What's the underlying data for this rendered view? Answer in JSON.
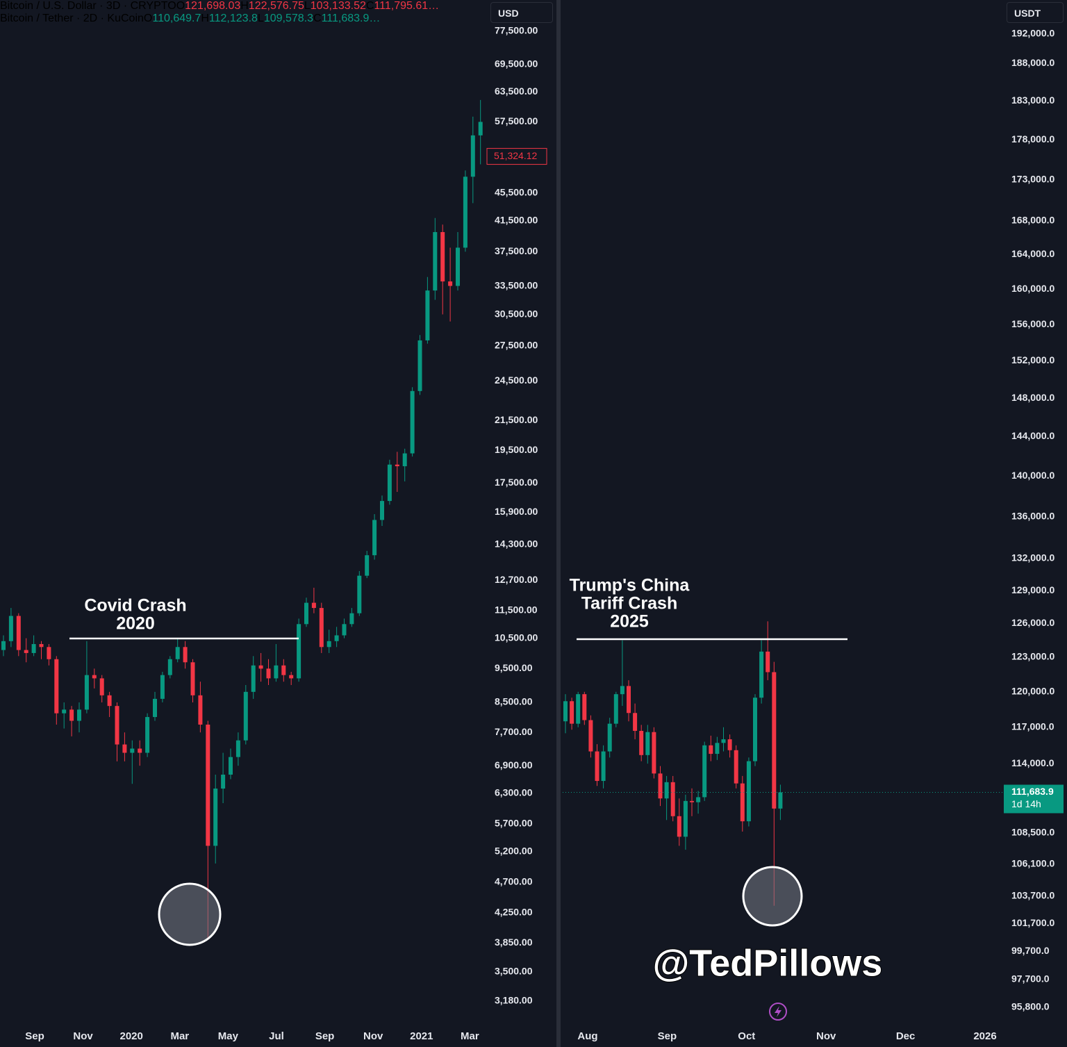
{
  "watermark": "@TedPillows",
  "chart_data": [
    {
      "type": "candlestick",
      "log_scale": true,
      "up_color": "#089981",
      "down_color": "#f23645",
      "header": {
        "symbol": "Bitcoin / U.S. Dollar · 3D · CRYPTO",
        "currency": "USD",
        "value_color": "#f23645",
        "ohlc": [
          {
            "key": "O",
            "text": "121,698.03"
          },
          {
            "key": "H",
            "text": "122,576.75"
          },
          {
            "key": "L",
            "text": "103,133.52"
          },
          {
            "key": "C",
            "text": "111,795.61…"
          }
        ]
      },
      "ylim": [
        2940,
        80200
      ],
      "yticks": [
        {
          "value": 77500,
          "label": "77,500.00"
        },
        {
          "value": 69500,
          "label": "69,500.00"
        },
        {
          "value": 63500,
          "label": "63,500.00"
        },
        {
          "value": 57500,
          "label": "57,500.00"
        },
        {
          "value": 45500,
          "label": "45,500.00"
        },
        {
          "value": 41500,
          "label": "41,500.00"
        },
        {
          "value": 37500,
          "label": "37,500.00"
        },
        {
          "value": 33500,
          "label": "33,500.00"
        },
        {
          "value": 30500,
          "label": "30,500.00"
        },
        {
          "value": 27500,
          "label": "27,500.00"
        },
        {
          "value": 24500,
          "label": "24,500.00"
        },
        {
          "value": 21500,
          "label": "21,500.00"
        },
        {
          "value": 19500,
          "label": "19,500.00"
        },
        {
          "value": 17500,
          "label": "17,500.00"
        },
        {
          "value": 15900,
          "label": "15,900.00"
        },
        {
          "value": 14300,
          "label": "14,300.00"
        },
        {
          "value": 12700,
          "label": "12,700.00"
        },
        {
          "value": 11500,
          "label": "11,500.00"
        },
        {
          "value": 10500,
          "label": "10,500.00"
        },
        {
          "value": 9500,
          "label": "9,500.00"
        },
        {
          "value": 8500,
          "label": "8,500.00"
        },
        {
          "value": 7700,
          "label": "7,700.00"
        },
        {
          "value": 6900,
          "label": "6,900.00"
        },
        {
          "value": 6300,
          "label": "6,300.00"
        },
        {
          "value": 5700,
          "label": "5,700.00"
        },
        {
          "value": 5200,
          "label": "5,200.00"
        },
        {
          "value": 4700,
          "label": "4,700.00"
        },
        {
          "value": 4250,
          "label": "4,250.00"
        },
        {
          "value": 3850,
          "label": "3,850.00"
        },
        {
          "value": 3500,
          "label": "3,500.00"
        },
        {
          "value": 3180,
          "label": "3,180.00"
        }
      ],
      "xticks": [
        "Sep",
        "Nov",
        "2020",
        "Mar",
        "May",
        "Jul",
        "Sep",
        "Nov",
        "2021",
        "Mar"
      ],
      "last_price": {
        "value": 51324.12,
        "label": "51,324.12"
      },
      "annotation": {
        "lines": [
          "Covid Crash",
          "2020"
        ],
        "level": 10490
      },
      "ohlc": [
        [
          10100,
          10600,
          9900,
          10400
        ],
        [
          10400,
          11600,
          10200,
          11300
        ],
        [
          11300,
          11400,
          9900,
          10100
        ],
        [
          10100,
          10500,
          9700,
          10000
        ],
        [
          10000,
          10600,
          9900,
          10300
        ],
        [
          10300,
          10400,
          9800,
          10200
        ],
        [
          10200,
          10300,
          9600,
          9800
        ],
        [
          9800,
          9900,
          7900,
          8200
        ],
        [
          8200,
          8500,
          7800,
          8300
        ],
        [
          8300,
          8400,
          7600,
          8000
        ],
        [
          8000,
          8500,
          7700,
          8300
        ],
        [
          8300,
          10400,
          8200,
          9300
        ],
        [
          9300,
          9500,
          8900,
          9200
        ],
        [
          9200,
          9300,
          8500,
          8700
        ],
        [
          8700,
          8800,
          8100,
          8400
        ],
        [
          8400,
          8500,
          7000,
          7400
        ],
        [
          7400,
          7700,
          7000,
          7200
        ],
        [
          7200,
          7500,
          6500,
          7300
        ],
        [
          7300,
          7500,
          6900,
          7200
        ],
        [
          7200,
          8200,
          7100,
          8100
        ],
        [
          8100,
          8800,
          8000,
          8600
        ],
        [
          8600,
          9400,
          8500,
          9300
        ],
        [
          9300,
          9900,
          9200,
          9800
        ],
        [
          9800,
          10500,
          9700,
          10200
        ],
        [
          10200,
          10400,
          9500,
          9700
        ],
        [
          9700,
          9800,
          8500,
          8700
        ],
        [
          8700,
          9100,
          7700,
          7900
        ],
        [
          7900,
          8000,
          3900,
          5300
        ],
        [
          5300,
          6700,
          5000,
          6400
        ],
        [
          6400,
          7200,
          6100,
          6700
        ],
        [
          6700,
          7300,
          6600,
          7100
        ],
        [
          7100,
          7700,
          6900,
          7500
        ],
        [
          7500,
          9000,
          7400,
          8800
        ],
        [
          8800,
          9900,
          8600,
          9600
        ],
        [
          9600,
          10000,
          9100,
          9500
        ],
        [
          9500,
          9800,
          9000,
          9200
        ],
        [
          9200,
          10300,
          9100,
          9600
        ],
        [
          9600,
          9800,
          9100,
          9300
        ],
        [
          9300,
          9400,
          9000,
          9200
        ],
        [
          9200,
          11200,
          9100,
          11000
        ],
        [
          11000,
          12000,
          10900,
          11800
        ],
        [
          11800,
          12400,
          11400,
          11600
        ],
        [
          11600,
          11800,
          10000,
          10200
        ],
        [
          10200,
          10800,
          10000,
          10400
        ],
        [
          10400,
          10900,
          10200,
          10600
        ],
        [
          10600,
          11200,
          10500,
          11000
        ],
        [
          11000,
          11600,
          10900,
          11400
        ],
        [
          11400,
          13100,
          11300,
          12900
        ],
        [
          12900,
          14000,
          12800,
          13800
        ],
        [
          13800,
          15800,
          13600,
          15500
        ],
        [
          15500,
          16800,
          15200,
          16500
        ],
        [
          16500,
          18900,
          16300,
          18600
        ],
        [
          18600,
          19400,
          17000,
          18500
        ],
        [
          18500,
          19600,
          17600,
          19300
        ],
        [
          19300,
          24000,
          19100,
          23700
        ],
        [
          23700,
          28500,
          23400,
          28000
        ],
        [
          28000,
          34500,
          27700,
          33000
        ],
        [
          33000,
          41900,
          32000,
          40000
        ],
        [
          40000,
          41000,
          30500,
          34000
        ],
        [
          34000,
          38000,
          29800,
          33500
        ],
        [
          33500,
          40000,
          33000,
          38000
        ],
        [
          38000,
          49000,
          37500,
          48000
        ],
        [
          48000,
          58500,
          44000,
          55000
        ],
        [
          55000,
          61800,
          50000,
          57500
        ]
      ]
    },
    {
      "type": "candlestick",
      "log_scale": true,
      "up_color": "#089981",
      "down_color": "#f23645",
      "header": {
        "symbol": "Bitcoin / Tether · 2D · KuCoin",
        "currency": "USDT",
        "value_color": "#089981",
        "ohlc": [
          {
            "key": "O",
            "text": "110,649.7"
          },
          {
            "key": "H",
            "text": "112,123.8"
          },
          {
            "key": "L",
            "text": "109,578.3"
          },
          {
            "key": "C",
            "text": "111,683.9…"
          }
        ]
      },
      "ylim": [
        94600,
        193800
      ],
      "yticks": [
        {
          "value": 192000,
          "label": "192,000.0"
        },
        {
          "value": 188000,
          "label": "188,000.0"
        },
        {
          "value": 183000,
          "label": "183,000.0"
        },
        {
          "value": 178000,
          "label": "178,000.0"
        },
        {
          "value": 173000,
          "label": "173,000.0"
        },
        {
          "value": 168000,
          "label": "168,000.0"
        },
        {
          "value": 164000,
          "label": "164,000.0"
        },
        {
          "value": 160000,
          "label": "160,000.0"
        },
        {
          "value": 156000,
          "label": "156,000.0"
        },
        {
          "value": 152000,
          "label": "152,000.0"
        },
        {
          "value": 148000,
          "label": "148,000.0"
        },
        {
          "value": 144000,
          "label": "144,000.0"
        },
        {
          "value": 140000,
          "label": "140,000.0"
        },
        {
          "value": 136000,
          "label": "136,000.0"
        },
        {
          "value": 132000,
          "label": "132,000.0"
        },
        {
          "value": 129000,
          "label": "129,000.0"
        },
        {
          "value": 126000,
          "label": "126,000.0"
        },
        {
          "value": 123000,
          "label": "123,000.0"
        },
        {
          "value": 120000,
          "label": "120,000.0"
        },
        {
          "value": 117000,
          "label": "117,000.0"
        },
        {
          "value": 114000,
          "label": "114,000.0"
        },
        {
          "value": 108500,
          "label": "108,500.0"
        },
        {
          "value": 106100,
          "label": "106,100.0"
        },
        {
          "value": 103700,
          "label": "103,700.0"
        },
        {
          "value": 101700,
          "label": "101,700.0"
        },
        {
          "value": 99700,
          "label": "99,700.0"
        },
        {
          "value": 97700,
          "label": "97,700.0"
        },
        {
          "value": 95800,
          "label": "95,800.0"
        }
      ],
      "xticks": [
        "Aug",
        "Sep",
        "Oct",
        "Nov",
        "Dec",
        "2026"
      ],
      "last_price": {
        "value": 111683.9,
        "label": "111,683.9",
        "countdown": "1d 14h"
      },
      "annotation": {
        "lines": [
          "Trump's China",
          "Tariff Crash",
          "2025"
        ],
        "level": 124600
      },
      "ohlc": [
        [
          117500,
          119800,
          116500,
          119200
        ],
        [
          119200,
          119500,
          116800,
          117300
        ],
        [
          117300,
          120000,
          117000,
          119800
        ],
        [
          119800,
          120000,
          117200,
          117600
        ],
        [
          117600,
          118000,
          114500,
          115000
        ],
        [
          115000,
          115600,
          112200,
          112600
        ],
        [
          112600,
          115500,
          112000,
          115000
        ],
        [
          115000,
          117800,
          114500,
          117300
        ],
        [
          117300,
          120000,
          117000,
          119800
        ],
        [
          119800,
          124500,
          118800,
          120500
        ],
        [
          120500,
          121000,
          117500,
          118200
        ],
        [
          118200,
          119000,
          116000,
          116700
        ],
        [
          116700,
          117200,
          114200,
          114700
        ],
        [
          114700,
          117200,
          114000,
          116600
        ],
        [
          116600,
          117000,
          112800,
          113200
        ],
        [
          113200,
          113800,
          110600,
          111200
        ],
        [
          111200,
          113000,
          109500,
          112500
        ],
        [
          112500,
          113000,
          109400,
          109800
        ],
        [
          109800,
          111200,
          107500,
          108200
        ],
        [
          108200,
          111500,
          107200,
          111000
        ],
        [
          111000,
          112000,
          109800,
          110900
        ],
        [
          110900,
          111800,
          110000,
          111300
        ],
        [
          111300,
          115800,
          111000,
          115500
        ],
        [
          115500,
          116300,
          114200,
          114800
        ],
        [
          114800,
          116200,
          114300,
          115700
        ],
        [
          115700,
          117000,
          115000,
          116000
        ],
        [
          116000,
          116400,
          114500,
          115100
        ],
        [
          115100,
          115500,
          112000,
          112400
        ],
        [
          112400,
          113000,
          108600,
          109400
        ],
        [
          109400,
          114500,
          109000,
          114200
        ],
        [
          114200,
          119800,
          113800,
          119500
        ],
        [
          119500,
          124500,
          119000,
          123500
        ],
        [
          123500,
          126200,
          121000,
          121700
        ],
        [
          121700,
          122600,
          103000,
          110400
        ],
        [
          110400,
          112300,
          109500,
          111683.9
        ]
      ]
    }
  ]
}
